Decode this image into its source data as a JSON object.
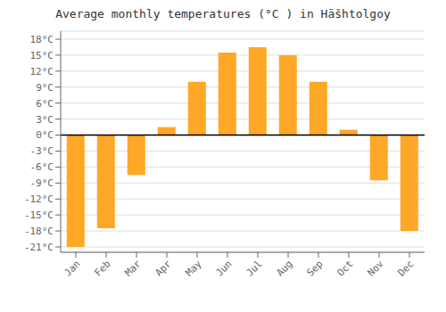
{
  "chart_data": {
    "type": "bar",
    "title": "Average monthly temperatures (°C ) in Häšhtolgoy",
    "categories": [
      "Jan",
      "Feb",
      "Mar",
      "Apr",
      "May",
      "Jun",
      "Jul",
      "Aug",
      "Sep",
      "Oct",
      "Nov",
      "Dec"
    ],
    "values": [
      -21,
      -17.5,
      -7.5,
      1.5,
      10,
      15.5,
      16.5,
      15,
      10,
      1,
      -8.5,
      -18
    ],
    "color": "#FFA726",
    "ylim": [
      -22,
      19.5
    ],
    "yticks": [
      {
        "value": -21,
        "label": "-21°C"
      },
      {
        "value": -18,
        "label": "-18°C"
      },
      {
        "value": -15,
        "label": "-15°C"
      },
      {
        "value": -12,
        "label": "-12°C"
      },
      {
        "value": -9,
        "label": "-9°C"
      },
      {
        "value": -6,
        "label": "-6°C"
      },
      {
        "value": -3,
        "label": "-3°C"
      },
      {
        "value": 0,
        "label": "0°C"
      },
      {
        "value": 3,
        "label": "3°C"
      },
      {
        "value": 6,
        "label": "6°C"
      },
      {
        "value": 9,
        "label": "9°C"
      },
      {
        "value": 12,
        "label": "12°C"
      },
      {
        "value": 15,
        "label": "15°C"
      },
      {
        "value": 18,
        "label": "18°C"
      }
    ],
    "grid": true
  }
}
